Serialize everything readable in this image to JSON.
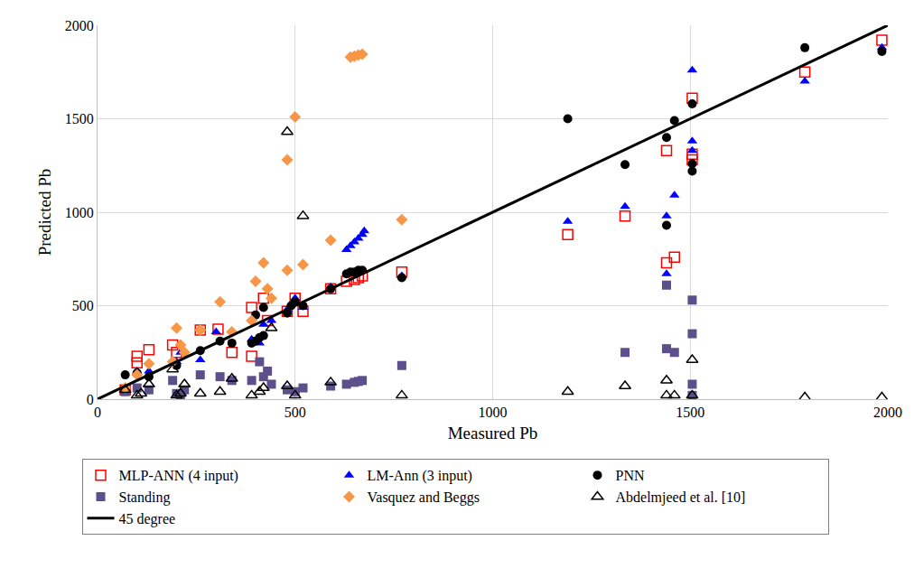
{
  "chart_data": {
    "type": "scatter",
    "x_label": "Measured Pb",
    "y_label": "Predicted Pb",
    "xlim": [
      0,
      2000
    ],
    "ylim": [
      0,
      2000
    ],
    "xticks": [
      0,
      500,
      1000,
      1500,
      2000
    ],
    "yticks": [
      0,
      500,
      1000,
      1500,
      2000
    ],
    "grid": true,
    "legend": "bottom",
    "series": [
      {
        "name": "MLP-ANN (4 input)",
        "color": "#ff0000",
        "marker": "square-open",
        "x": [
          70,
          100,
          100,
          130,
          190,
          200,
          260,
          305,
          340,
          390,
          390,
          420,
          430,
          480,
          500,
          520,
          590,
          630,
          650,
          660,
          670,
          770,
          1190,
          1335,
          1440,
          1440,
          1460,
          1505,
          1505,
          1505,
          1790,
          1985
        ],
        "values": [
          50,
          230,
          195,
          265,
          290,
          250,
          370,
          375,
          250,
          230,
          490,
          540,
          420,
          470,
          540,
          470,
          590,
          630,
          640,
          650,
          660,
          680,
          880,
          980,
          730,
          1330,
          760,
          1610,
          1310,
          1280,
          1750,
          1920
        ]
      },
      {
        "name": "LM-Ann (3 input)",
        "color": "#0000ff",
        "marker": "triangle-up",
        "x": [
          70,
          100,
          130,
          200,
          210,
          260,
          300,
          390,
          410,
          420,
          440,
          480,
          500,
          520,
          590,
          630,
          640,
          650,
          660,
          670,
          675,
          770,
          1190,
          1335,
          1440,
          1440,
          1460,
          1505,
          1505,
          1505,
          1790,
          1985
        ],
        "values": [
          50,
          150,
          150,
          200,
          250,
          210,
          360,
          320,
          300,
          400,
          420,
          480,
          540,
          490,
          600,
          800,
          820,
          840,
          860,
          880,
          900,
          660,
          950,
          1030,
          980,
          670,
          1090,
          1760,
          1380,
          1330,
          1700,
          1880
        ]
      },
      {
        "name": "PNN",
        "color": "#000000",
        "marker": "circle",
        "x": [
          70,
          100,
          130,
          200,
          260,
          310,
          340,
          390,
          400,
          410,
          420,
          400,
          420,
          480,
          490,
          500,
          520,
          590,
          630,
          640,
          650,
          660,
          670,
          770,
          1190,
          1335,
          1440,
          1440,
          1460,
          1505,
          1505,
          1505,
          1790,
          1985
        ],
        "values": [
          130,
          140,
          120,
          180,
          260,
          310,
          300,
          300,
          310,
          330,
          340,
          450,
          490,
          460,
          500,
          520,
          500,
          590,
          670,
          680,
          680,
          690,
          690,
          650,
          1500,
          1255,
          1400,
          930,
          1490,
          1580,
          1260,
          1220,
          1880,
          1860
        ]
      },
      {
        "name": "Standing",
        "color": "#5b4f8c",
        "marker": "square",
        "x": [
          70,
          100,
          130,
          190,
          200,
          210,
          220,
          260,
          310,
          340,
          390,
          410,
          420,
          430,
          440,
          480,
          500,
          520,
          590,
          630,
          650,
          660,
          670,
          770,
          1335,
          1440,
          1440,
          1460,
          1505,
          1505,
          1505,
          1505
        ],
        "values": [
          40,
          60,
          50,
          100,
          30,
          20,
          50,
          130,
          120,
          100,
          100,
          200,
          120,
          150,
          80,
          50,
          40,
          60,
          70,
          80,
          90,
          95,
          100,
          180,
          250,
          610,
          270,
          250,
          530,
          350,
          80,
          20
        ]
      },
      {
        "name": "Vasquez and Beggs",
        "color": "#f79646",
        "marker": "diamond",
        "x": [
          70,
          100,
          130,
          190,
          200,
          210,
          220,
          260,
          310,
          340,
          390,
          400,
          420,
          430,
          440,
          480,
          480,
          500,
          520,
          590,
          640,
          650,
          660,
          670,
          770
        ],
        "values": [
          60,
          130,
          190,
          200,
          380,
          290,
          250,
          370,
          520,
          360,
          420,
          630,
          730,
          590,
          540,
          1280,
          690,
          1510,
          720,
          850,
          1830,
          1835,
          1840,
          1845,
          960
        ]
      },
      {
        "name": "Abdelmjeed et al. [10]",
        "color": "#000000",
        "marker": "triangle-up-open",
        "x": [
          70,
          100,
          110,
          130,
          190,
          200,
          210,
          220,
          260,
          310,
          340,
          390,
          410,
          420,
          440,
          480,
          480,
          500,
          520,
          590,
          770,
          1190,
          1335,
          1440,
          1440,
          1460,
          1505,
          1505,
          1790,
          1985
        ],
        "values": [
          50,
          20,
          30,
          80,
          160,
          20,
          30,
          80,
          30,
          40,
          110,
          20,
          40,
          60,
          380,
          1430,
          70,
          20,
          980,
          90,
          20,
          40,
          70,
          100,
          20,
          20,
          210,
          20,
          10,
          10
        ]
      },
      {
        "name": "45 degree",
        "color": "#000000",
        "type": "line",
        "line_style": "solid",
        "x": [
          0,
          2000
        ],
        "values": [
          0,
          2000
        ]
      }
    ]
  }
}
